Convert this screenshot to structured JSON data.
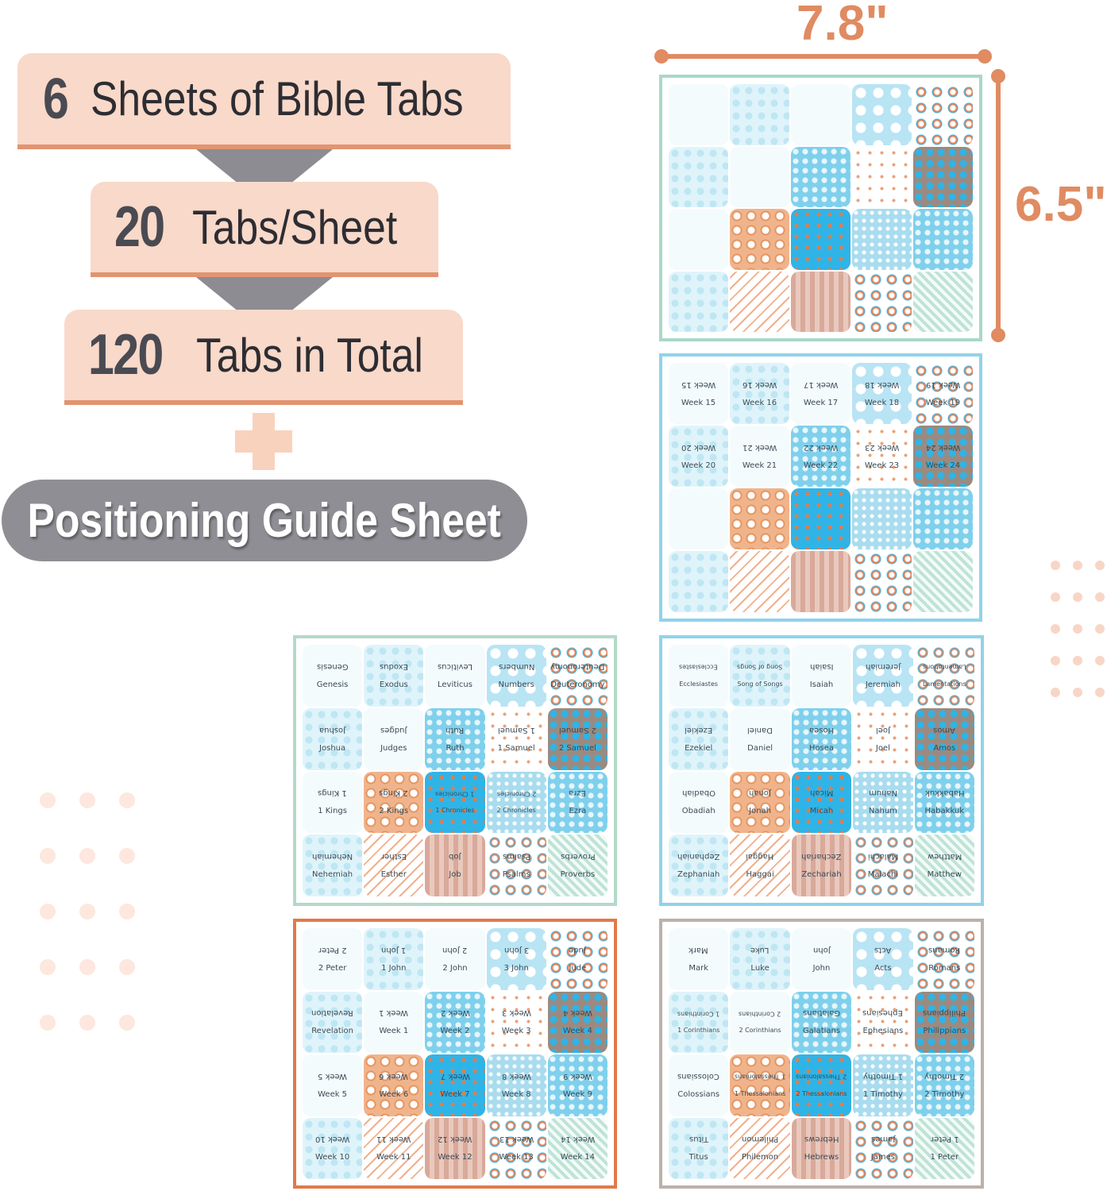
{
  "banners": [
    {
      "num": "6",
      "text": "Sheets of Bible Tabs"
    },
    {
      "num": "20",
      "text": "Tabs/Sheet"
    },
    {
      "num": "120",
      "text": "Tabs in Total"
    }
  ],
  "positioning_guide": "Positioning Guide Sheet",
  "dimensions": {
    "width": "7.8\"",
    "height": "6.5\""
  },
  "colors": {
    "accent": "#e08b62",
    "banner_bg": "#f9d9c9",
    "pill": "#8f8e94"
  },
  "sheets": [
    {
      "border": "#a9d8c8",
      "labels": []
    },
    {
      "border": "#8fd3ea",
      "labels": [
        "Week 15",
        "Week 16",
        "Week 17",
        "Week 18",
        "Week 19",
        "Week 20",
        "Week 21",
        "Week 22",
        "Week 23",
        "Week 24"
      ]
    },
    {
      "border": "#b4d9c8",
      "labels": [
        "Genesis",
        "Exodus",
        "Leviticus",
        "Numbers",
        "Deuteronomy",
        "Joshua",
        "Judges",
        "Ruth",
        "1 Samuel",
        "2 Samuel",
        "1 Kings",
        "2 Kings",
        "1 Chronicles",
        "2 Chronicles",
        "Ezra",
        "Nehemiah",
        "Esther",
        "Job",
        "Psalms",
        "Proverbs"
      ]
    },
    {
      "border": "#8fd3ea",
      "labels": [
        "Ecclesiastes",
        "Song of Songs",
        "Isaiah",
        "Jeremiah",
        "Lamentations",
        "Ezekiel",
        "Daniel",
        "Hosea",
        "Joel",
        "Amos",
        "Obadiah",
        "Jonah",
        "Micah",
        "Nahum",
        "Habakkuk",
        "Zephaniah",
        "Haggai",
        "Zechariah",
        "Malachi",
        "Matthew"
      ]
    },
    {
      "border": "#e07a4a",
      "labels": [
        "2 Peter",
        "1 John",
        "2 John",
        "3 John",
        "Jude",
        "Revelation",
        "Week 1",
        "Week 2",
        "Week 3",
        "Week 4",
        "Week 5",
        "Week 6",
        "Week 7",
        "Week 8",
        "Week 9",
        "Week 10",
        "Week 11",
        "Week 12",
        "Week 13",
        "Week 14"
      ]
    },
    {
      "border": "#bdb0a8",
      "labels": [
        "Mark",
        "Luke",
        "John",
        "Acts",
        "Romans",
        "1 Corinthians",
        "2 Corinthians",
        "Galatians",
        "Ephesians",
        "Philippians",
        "Colossians",
        "1 Thessalonians",
        "2 Thessalonians",
        "1 Timothy",
        "2 Timothy",
        "Titus",
        "Philemon",
        "Hebrews",
        "James",
        "1 Peter"
      ]
    }
  ]
}
